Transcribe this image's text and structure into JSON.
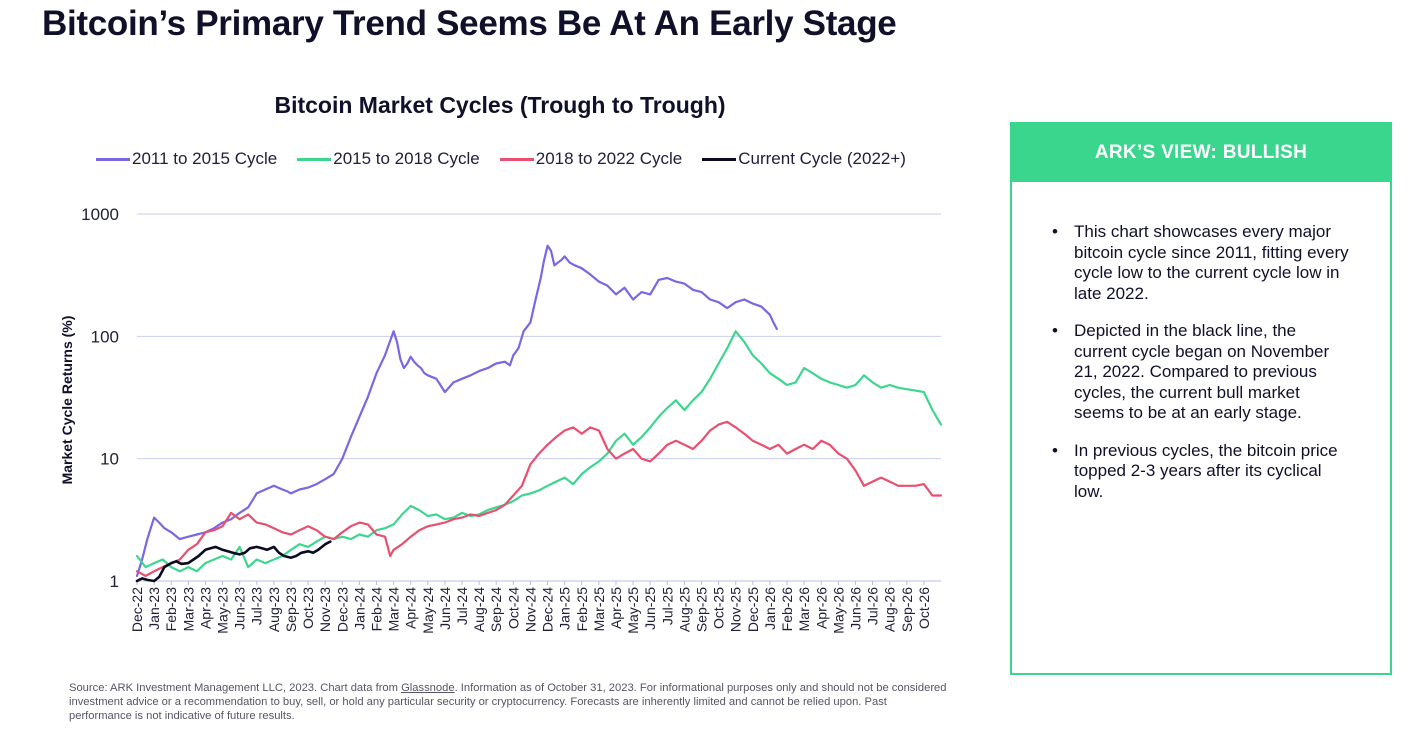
{
  "page": {
    "title": "Bitcoin’s Primary Trend Seems Be At An Early Stage",
    "source_prefix": "Source: ARK Investment Management LLC, 2023. Chart data from ",
    "source_link": "Glassnode",
    "source_suffix": ". Information as of October 31, 2023. For informational purposes only and should not be considered investment advice or a recommendation to buy, sell, or hold any particular security or cryptocurrency. Forecasts are inherently limited and cannot be relied upon. Past performance is not indicative of future results."
  },
  "view": {
    "header": "ARK’S VIEW: BULLISH",
    "bullets": [
      "This chart showcases every major bitcoin cycle since 2011, fitting every cycle low to the current cycle low in late 2022.",
      "Depicted in the black line, the current cycle began on November 21, 2022. Compared to previous cycles, the current bull market seems to be at an early stage.",
      "In previous cycles, the bitcoin price topped 2-3 years after its cyclical low."
    ]
  },
  "colors": {
    "c2011": "#7b66e3",
    "c2015": "#3dd68e",
    "c2018": "#e94f6f",
    "current": "#0b0b23",
    "grid": "#c9cdf0",
    "accent": "#3bd68e"
  },
  "chart_data": {
    "type": "line",
    "title": "Bitcoin Market Cycles (Trough to Trough)",
    "ylabel": "Market Cycle Returns (%)",
    "yscale": "log",
    "ylim": [
      1,
      1000
    ],
    "yticks": [
      1,
      10,
      100,
      1000
    ],
    "ytick_labels": [
      "1",
      "10",
      "100",
      "1000"
    ],
    "grid": true,
    "legend_position": "top",
    "xtick_labels": [
      "Dec-22",
      "Jan-23",
      "Feb-23",
      "Mar-23",
      "Apr-23",
      "May-23",
      "Jun-23",
      "Jul-23",
      "Aug-23",
      "Sep-23",
      "Oct-23",
      "Nov-23",
      "Dec-23",
      "Jan-24",
      "Feb-24",
      "Mar-24",
      "Apr-24",
      "May-24",
      "Jun-24",
      "Jul-24",
      "Aug-24",
      "Sep-24",
      "Oct-24",
      "Nov-24",
      "Dec-24",
      "Jan-25",
      "Feb-25",
      "Mar-25",
      "Apr-25",
      "May-25",
      "Jun-25",
      "Jul-25",
      "Aug-25",
      "Sep-25",
      "Oct-25",
      "Nov-25",
      "Dec-25",
      "Jan-26",
      "Feb-26",
      "Mar-26",
      "Apr-26",
      "May-26",
      "Jun-26",
      "Jul-26",
      "Aug-26",
      "Sep-26",
      "Oct-26"
    ],
    "x_range": [
      0,
      47
    ],
    "series": [
      {
        "name": "2011 to 2015 Cycle",
        "color": "#7b66e3",
        "x": [
          0,
          0.3,
          0.6,
          1,
          1.3,
          1.6,
          2,
          2.5,
          3,
          3.5,
          4,
          4.5,
          5,
          5.5,
          6,
          6.5,
          7,
          7.5,
          8,
          8.5,
          8.8,
          9,
          9.5,
          10,
          10.5,
          11,
          11.5,
          12,
          12.5,
          13,
          13.5,
          14,
          14.5,
          15,
          15.2,
          15.4,
          15.6,
          15.8,
          16,
          16.2,
          16.4,
          16.6,
          16.8,
          17,
          17.5,
          18,
          18.5,
          19,
          19.5,
          20,
          20.5,
          21,
          21.5,
          21.8,
          22,
          22.3,
          22.6,
          23,
          23.3,
          23.6,
          23.8,
          24,
          24.2,
          24.4,
          24.6,
          24.8,
          25,
          25.3,
          25.6,
          26,
          26.5,
          27,
          27.5,
          28,
          28.5,
          29,
          29.5,
          30,
          30.5,
          31,
          31.5,
          32,
          32.5,
          33,
          33.5,
          34,
          34.5,
          35,
          35.5,
          36,
          36.5,
          37,
          37.2,
          37.4
        ],
        "values": [
          1.1,
          1.5,
          2.2,
          3.3,
          3.0,
          2.7,
          2.5,
          2.2,
          2.3,
          2.4,
          2.5,
          2.7,
          3.0,
          3.2,
          3.6,
          4.0,
          5.2,
          5.6,
          6.0,
          5.6,
          5.4,
          5.2,
          5.6,
          5.8,
          6.2,
          6.8,
          7.5,
          10,
          15,
          22,
          32,
          50,
          70,
          110,
          90,
          65,
          55,
          60,
          68,
          62,
          58,
          55,
          50,
          48,
          45,
          35,
          42,
          45,
          48,
          52,
          55,
          60,
          62,
          58,
          70,
          80,
          110,
          130,
          200,
          300,
          420,
          550,
          500,
          380,
          400,
          420,
          450,
          400,
          380,
          360,
          320,
          280,
          260,
          220,
          250,
          200,
          230,
          220,
          290,
          300,
          280,
          270,
          240,
          230,
          200,
          190,
          170,
          190,
          200,
          185,
          175,
          150,
          130,
          115
        ]
      },
      {
        "name": "2015 to 2018 Cycle",
        "color": "#3dd68e",
        "x": [
          0,
          0.5,
          1,
          1.5,
          2,
          2.5,
          3,
          3.5,
          4,
          4.5,
          5,
          5.5,
          6,
          6.5,
          7,
          7.5,
          8,
          8.5,
          9,
          9.5,
          10,
          10.5,
          11,
          11.5,
          12,
          12.5,
          13,
          13.5,
          14,
          14.5,
          15,
          15.5,
          16,
          16.5,
          17,
          17.5,
          18,
          18.5,
          19,
          19.5,
          20,
          20.5,
          21,
          21.5,
          22,
          22.5,
          23,
          23.5,
          24,
          24.5,
          25,
          25.5,
          26,
          26.5,
          27,
          27.5,
          28,
          28.5,
          29,
          29.5,
          30,
          30.5,
          31,
          31.5,
          32,
          32.5,
          33,
          33.5,
          34,
          34.5,
          35,
          35.5,
          36,
          36.5,
          37,
          37.5,
          38,
          38.5,
          39,
          39.5,
          40,
          40.5,
          41,
          41.5,
          42,
          42.5,
          43,
          43.5,
          44,
          44.5,
          45,
          45.5,
          46,
          46.5,
          47
        ],
        "values": [
          1.6,
          1.3,
          1.4,
          1.5,
          1.3,
          1.2,
          1.3,
          1.2,
          1.4,
          1.5,
          1.6,
          1.5,
          1.9,
          1.3,
          1.5,
          1.4,
          1.5,
          1.6,
          1.8,
          2.0,
          1.9,
          2.1,
          2.3,
          2.2,
          2.3,
          2.2,
          2.4,
          2.3,
          2.6,
          2.7,
          2.9,
          3.5,
          4.1,
          3.8,
          3.4,
          3.5,
          3.2,
          3.3,
          3.6,
          3.4,
          3.5,
          3.8,
          4.0,
          4.2,
          4.5,
          5.0,
          5.2,
          5.5,
          6.0,
          6.5,
          7.0,
          6.2,
          7.5,
          8.5,
          9.5,
          11,
          14,
          16,
          13,
          15,
          18,
          22,
          26,
          30,
          25,
          30,
          35,
          45,
          60,
          80,
          110,
          90,
          70,
          60,
          50,
          45,
          40,
          42,
          55,
          50,
          45,
          42,
          40,
          38,
          40,
          48,
          42,
          38,
          40,
          38,
          37,
          36,
          35,
          25,
          19
        ]
      },
      {
        "name": "2018 to 2022 Cycle",
        "color": "#e94f6f",
        "x": [
          0,
          0.5,
          1,
          1.5,
          2,
          2.5,
          3,
          3.5,
          4,
          4.5,
          5,
          5.5,
          6,
          6.5,
          7,
          7.5,
          8,
          8.5,
          9,
          9.5,
          10,
          10.5,
          11,
          11.5,
          12,
          12.5,
          13,
          13.5,
          14,
          14.5,
          14.8,
          15,
          15.5,
          16,
          16.5,
          17,
          17.5,
          18,
          18.5,
          19,
          19.5,
          20,
          20.5,
          21,
          21.5,
          22,
          22.5,
          23,
          23.5,
          24,
          24.5,
          25,
          25.5,
          26,
          26.5,
          27,
          27.5,
          28,
          28.5,
          29,
          29.5,
          30,
          30.5,
          31,
          31.5,
          32,
          32.5,
          33,
          33.5,
          34,
          34.5,
          35,
          35.5,
          36,
          36.5,
          37,
          37.5,
          38,
          38.5,
          39,
          39.5,
          40,
          40.5,
          41,
          41.5,
          42,
          42.5,
          43,
          43.5,
          44,
          44.5,
          45,
          45.5,
          46,
          46.5,
          47
        ],
        "values": [
          1.2,
          1.1,
          1.2,
          1.3,
          1.4,
          1.5,
          1.8,
          2.0,
          2.5,
          2.6,
          2.8,
          3.6,
          3.2,
          3.5,
          3.0,
          2.9,
          2.7,
          2.5,
          2.4,
          2.6,
          2.8,
          2.6,
          2.3,
          2.2,
          2.5,
          2.8,
          3.0,
          2.9,
          2.4,
          2.3,
          1.6,
          1.8,
          2.0,
          2.3,
          2.6,
          2.8,
          2.9,
          3.0,
          3.2,
          3.3,
          3.5,
          3.4,
          3.6,
          3.8,
          4.2,
          5.0,
          6.0,
          9.0,
          11,
          13,
          15,
          17,
          18,
          16,
          18,
          17,
          12,
          10,
          11,
          12,
          10,
          9.5,
          11,
          13,
          14,
          13,
          12,
          14,
          17,
          19,
          20,
          18,
          16,
          14,
          13,
          12,
          13,
          11,
          12,
          13,
          12,
          14,
          13,
          11,
          10,
          8,
          6,
          6.5,
          7,
          6.5,
          6,
          6,
          6,
          6.2,
          5,
          5
        ]
      },
      {
        "name": "Current Cycle (2022+)",
        "color": "#0b0b23",
        "x": [
          0,
          0.3,
          0.6,
          1,
          1.3,
          1.6,
          2,
          2.3,
          2.6,
          3,
          3.3,
          3.6,
          4,
          4.3,
          4.6,
          5,
          5.3,
          5.6,
          6,
          6.3,
          6.6,
          7,
          7.3,
          7.6,
          8,
          8.3,
          8.6,
          9,
          9.3,
          9.6,
          10,
          10.3,
          10.6,
          11,
          11.3
        ],
        "values": [
          1.0,
          1.05,
          1.02,
          1.0,
          1.08,
          1.3,
          1.4,
          1.45,
          1.38,
          1.4,
          1.5,
          1.6,
          1.8,
          1.85,
          1.9,
          1.8,
          1.75,
          1.7,
          1.65,
          1.7,
          1.85,
          1.9,
          1.85,
          1.8,
          1.9,
          1.7,
          1.6,
          1.55,
          1.6,
          1.7,
          1.75,
          1.7,
          1.8,
          2.0,
          2.1
        ]
      }
    ]
  }
}
